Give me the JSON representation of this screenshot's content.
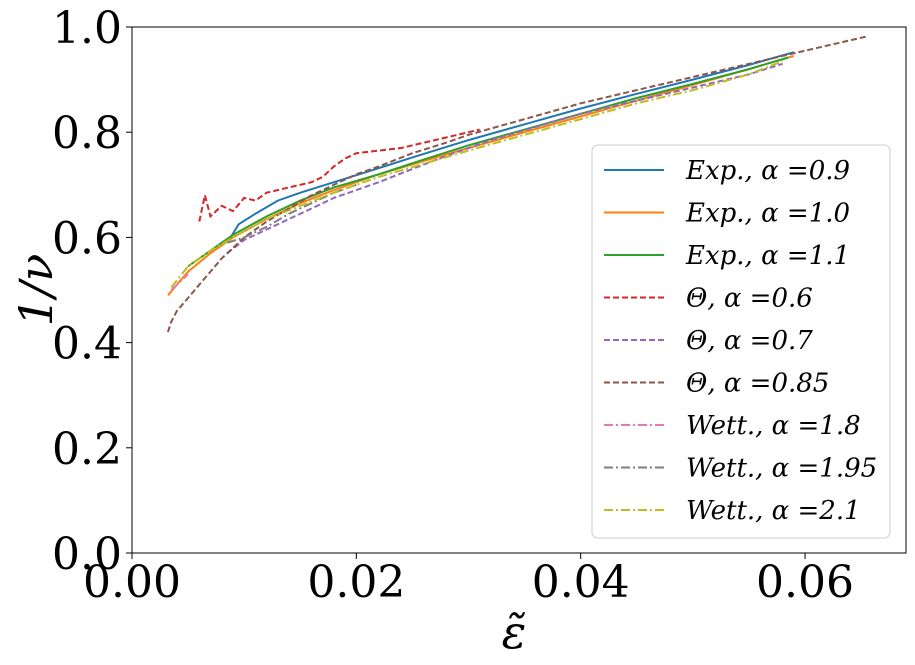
{
  "chart_data": {
    "type": "line",
    "title": "",
    "xlabel": "ε̃",
    "ylabel": "1/ν",
    "xlim": [
      0.0,
      0.069
    ],
    "ylim": [
      0.0,
      1.0
    ],
    "xticks": [
      0.0,
      0.02,
      0.04,
      0.06
    ],
    "xtick_labels": [
      "0.00",
      "0.02",
      "0.04",
      "0.06"
    ],
    "yticks": [
      0.0,
      0.2,
      0.4,
      0.6,
      0.8,
      1.0
    ],
    "ytick_labels": [
      "0.0",
      "0.2",
      "0.4",
      "0.6",
      "0.8",
      "1.0"
    ],
    "grid": false,
    "legend_position": "right",
    "series": [
      {
        "name": "Exp., α =0.9",
        "color": "#1f77b4",
        "style": "solid",
        "x": [
          0.0088,
          0.0095,
          0.011,
          0.013,
          0.015,
          0.018,
          0.021,
          0.025,
          0.03,
          0.035,
          0.04,
          0.045,
          0.05,
          0.055,
          0.059
        ],
        "y": [
          0.6,
          0.625,
          0.645,
          0.67,
          0.685,
          0.705,
          0.725,
          0.752,
          0.785,
          0.815,
          0.845,
          0.873,
          0.9,
          0.928,
          0.952
        ]
      },
      {
        "name": "Exp., α =1.0",
        "color": "#ff7f0e",
        "style": "solid",
        "x": [
          0.0032,
          0.004,
          0.005,
          0.007,
          0.009,
          0.012,
          0.015,
          0.018,
          0.022,
          0.026,
          0.03,
          0.035,
          0.04,
          0.045,
          0.05,
          0.055,
          0.059
        ],
        "y": [
          0.49,
          0.51,
          0.535,
          0.57,
          0.6,
          0.635,
          0.665,
          0.69,
          0.72,
          0.745,
          0.77,
          0.8,
          0.83,
          0.86,
          0.89,
          0.92,
          0.945
        ]
      },
      {
        "name": "Exp., α =1.1",
        "color": "#2ca02c",
        "style": "solid",
        "x": [
          0.005,
          0.007,
          0.009,
          0.012,
          0.015,
          0.018,
          0.022,
          0.026,
          0.03,
          0.035,
          0.04,
          0.045,
          0.05,
          0.055,
          0.0585
        ],
        "y": [
          0.545,
          0.575,
          0.605,
          0.64,
          0.67,
          0.695,
          0.72,
          0.748,
          0.775,
          0.805,
          0.835,
          0.865,
          0.892,
          0.92,
          0.942
        ]
      },
      {
        "name": "Θ, α =0.6",
        "color": "#d62728",
        "style": "dashed",
        "x": [
          0.006,
          0.0065,
          0.007,
          0.008,
          0.009,
          0.01,
          0.011,
          0.012,
          0.013,
          0.014,
          0.015,
          0.016,
          0.017,
          0.018,
          0.019,
          0.02,
          0.022,
          0.024,
          0.026,
          0.028,
          0.03,
          0.031
        ],
        "y": [
          0.63,
          0.68,
          0.64,
          0.66,
          0.65,
          0.675,
          0.67,
          0.685,
          0.69,
          0.695,
          0.7,
          0.705,
          0.715,
          0.735,
          0.75,
          0.76,
          0.765,
          0.77,
          0.78,
          0.79,
          0.8,
          0.805
        ]
      },
      {
        "name": "Θ, α =0.7",
        "color": "#9467bd",
        "style": "dashed",
        "x": [
          0.0085,
          0.01,
          0.012,
          0.014,
          0.016,
          0.018,
          0.02,
          0.022,
          0.025,
          0.028,
          0.032,
          0.036,
          0.04,
          0.045,
          0.05,
          0.055,
          0.058
        ],
        "y": [
          0.57,
          0.595,
          0.615,
          0.635,
          0.655,
          0.675,
          0.69,
          0.705,
          0.73,
          0.755,
          0.785,
          0.81,
          0.835,
          0.86,
          0.885,
          0.91,
          0.93
        ]
      },
      {
        "name": "Θ, α =0.85",
        "color": "#8c564b",
        "style": "dashed",
        "x": [
          0.0032,
          0.0035,
          0.004,
          0.005,
          0.006,
          0.007,
          0.008,
          0.009,
          0.01,
          0.012,
          0.014,
          0.016,
          0.018,
          0.02,
          0.022,
          0.025,
          0.028,
          0.03,
          0.035,
          0.04,
          0.045,
          0.05,
          0.055,
          0.06,
          0.0655
        ],
        "y": [
          0.42,
          0.44,
          0.46,
          0.485,
          0.51,
          0.535,
          0.56,
          0.58,
          0.6,
          0.63,
          0.655,
          0.68,
          0.7,
          0.72,
          0.735,
          0.76,
          0.78,
          0.795,
          0.825,
          0.855,
          0.88,
          0.905,
          0.93,
          0.955,
          0.982
        ]
      },
      {
        "name": "Wett., α =1.8",
        "color": "#e377c2",
        "style": "dashdot",
        "x": [
          0.0035,
          0.004,
          0.0045,
          0.005
        ],
        "y": [
          0.5,
          0.51,
          0.52,
          0.53
        ]
      },
      {
        "name": "Wett., α =1.95",
        "color": "#7f7f7f",
        "style": "dashdot",
        "x": [
          0.0085,
          0.01,
          0.012,
          0.014,
          0.016,
          0.018,
          0.02
        ],
        "y": [
          0.59,
          0.6,
          0.62,
          0.645,
          0.665,
          0.685,
          0.7
        ]
      },
      {
        "name": "Wett., α =2.1",
        "color": "#bcbd22",
        "style": "dashdot",
        "x": [
          0.0035,
          0.005,
          0.007,
          0.009,
          0.012,
          0.015,
          0.018,
          0.022,
          0.026,
          0.03,
          0.035,
          0.04,
          0.045,
          0.05,
          0.055,
          0.058
        ],
        "y": [
          0.505,
          0.545,
          0.575,
          0.6,
          0.635,
          0.66,
          0.685,
          0.715,
          0.74,
          0.765,
          0.795,
          0.825,
          0.855,
          0.88,
          0.91,
          0.935
        ]
      }
    ]
  }
}
